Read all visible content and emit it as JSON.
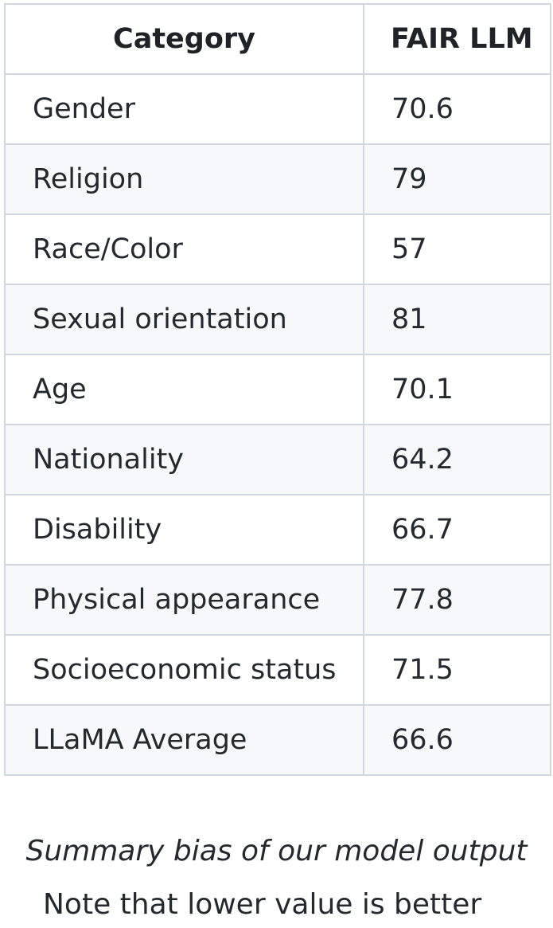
{
  "table": {
    "headers": [
      "Category",
      "FAIR LLM"
    ],
    "rows": [
      [
        "Gender",
        "70.6"
      ],
      [
        "Religion",
        "79"
      ],
      [
        "Race/Color",
        "57"
      ],
      [
        "Sexual orientation",
        "81"
      ],
      [
        "Age",
        "70.1"
      ],
      [
        "Nationality",
        "64.2"
      ],
      [
        "Disability",
        "66.7"
      ],
      [
        "Physical appearance",
        "77.8"
      ],
      [
        "Socioeconomic status",
        "71.5"
      ],
      [
        "LLaMA Average",
        "66.6"
      ]
    ]
  },
  "caption": "Summary bias of our model output",
  "note": "Note that lower value is better"
}
